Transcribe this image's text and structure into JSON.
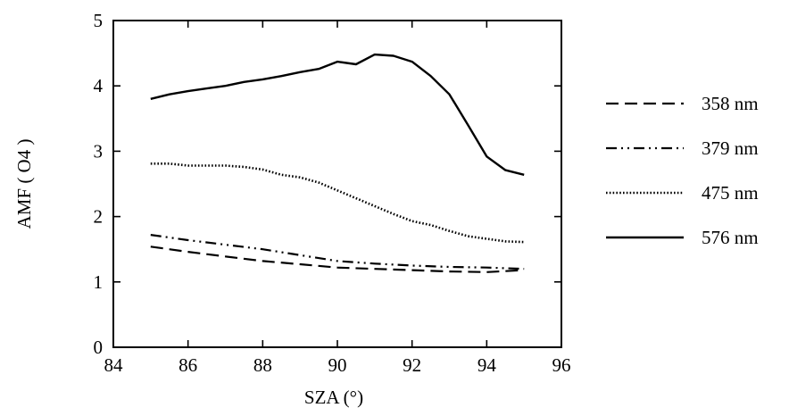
{
  "chart_data": {
    "type": "line",
    "xlabel": "SZA (°)",
    "ylabel": "AMF ( O4 )",
    "xlim": [
      84,
      96
    ],
    "ylim": [
      0,
      5
    ],
    "xticks": [
      84,
      86,
      88,
      90,
      92,
      94,
      96
    ],
    "yticks": [
      0,
      1,
      2,
      3,
      4,
      5
    ],
    "grid": false,
    "legend_position": "right",
    "series": [
      {
        "name": "358 nm",
        "style": "dashed",
        "x": [
          85,
          86,
          87,
          88,
          89,
          90,
          91,
          92,
          93,
          94,
          95
        ],
        "y": [
          1.54,
          1.46,
          1.39,
          1.32,
          1.27,
          1.22,
          1.2,
          1.18,
          1.16,
          1.15,
          1.18
        ]
      },
      {
        "name": "379 nm",
        "style": "dashdot",
        "x": [
          85,
          86,
          87,
          88,
          89,
          90,
          91,
          92,
          93,
          94,
          95
        ],
        "y": [
          1.72,
          1.64,
          1.57,
          1.5,
          1.41,
          1.32,
          1.28,
          1.25,
          1.23,
          1.22,
          1.2
        ]
      },
      {
        "name": "475 nm",
        "style": "dotted",
        "x": [
          85,
          85.5,
          86,
          86.5,
          87,
          87.5,
          88,
          88.5,
          89,
          89.5,
          90,
          90.5,
          91,
          91.5,
          92,
          92.5,
          93,
          93.5,
          94,
          94.5,
          95
        ],
        "y": [
          2.81,
          2.81,
          2.78,
          2.78,
          2.78,
          2.76,
          2.72,
          2.64,
          2.6,
          2.52,
          2.4,
          2.28,
          2.16,
          2.04,
          1.93,
          1.87,
          1.78,
          1.7,
          1.66,
          1.62,
          1.61
        ]
      },
      {
        "name": "576 nm",
        "style": "solid",
        "x": [
          85,
          85.5,
          86,
          86.5,
          87,
          87.5,
          88,
          88.5,
          89,
          89.5,
          90,
          90.5,
          91,
          91.5,
          92,
          92.5,
          93,
          93.5,
          94,
          94.5,
          95
        ],
        "y": [
          3.8,
          3.87,
          3.92,
          3.96,
          4.0,
          4.06,
          4.1,
          4.15,
          4.21,
          4.26,
          4.37,
          4.33,
          4.48,
          4.46,
          4.37,
          4.15,
          3.87,
          3.4,
          2.92,
          2.71,
          2.64
        ]
      }
    ]
  }
}
